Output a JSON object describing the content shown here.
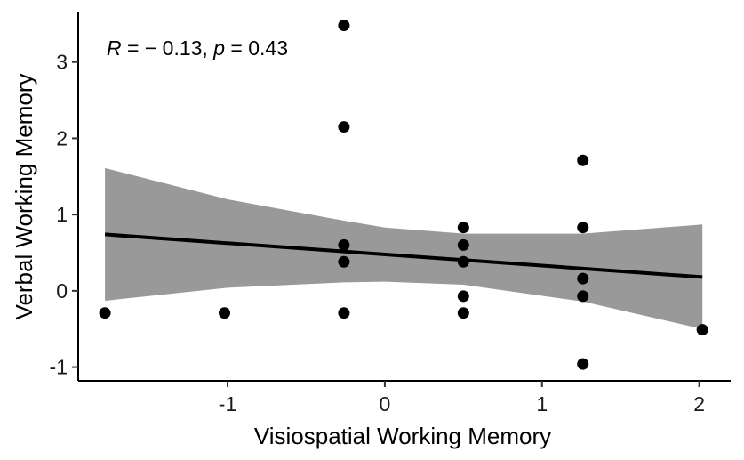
{
  "chart_data": {
    "type": "scatter",
    "xlabel": "Visiospatial Working Memory",
    "ylabel": "Verbal Working Memory",
    "annotation": {
      "r_label": "R",
      "r_text": " = − 0.13, ",
      "p_label": "p",
      "p_text": " = 0.43"
    },
    "xlim": [
      -1.95,
      2.2
    ],
    "ylim": [
      -1.18,
      3.65
    ],
    "x_ticks": [
      -1,
      0,
      1,
      2
    ],
    "y_ticks": [
      -1,
      0,
      1,
      2,
      3
    ],
    "points": [
      {
        "x": -1.78,
        "y": -0.29
      },
      {
        "x": -1.02,
        "y": -0.29
      },
      {
        "x": -0.26,
        "y": 3.48
      },
      {
        "x": -0.26,
        "y": 2.15
      },
      {
        "x": -0.26,
        "y": 0.6
      },
      {
        "x": -0.26,
        "y": 0.38
      },
      {
        "x": -0.26,
        "y": -0.29
      },
      {
        "x": 0.5,
        "y": 0.83
      },
      {
        "x": 0.5,
        "y": 0.6
      },
      {
        "x": 0.5,
        "y": 0.38
      },
      {
        "x": 0.5,
        "y": -0.07
      },
      {
        "x": 0.5,
        "y": -0.29
      },
      {
        "x": 1.26,
        "y": 1.71
      },
      {
        "x": 1.26,
        "y": 0.83
      },
      {
        "x": 1.26,
        "y": 0.16
      },
      {
        "x": 1.26,
        "y": -0.07
      },
      {
        "x": 1.26,
        "y": -0.96
      },
      {
        "x": 2.02,
        "y": -0.51
      }
    ],
    "regression": {
      "x": [
        -1.78,
        2.02
      ],
      "y": [
        0.74,
        0.18
      ]
    },
    "confidence_band": {
      "x": [
        -1.78,
        -1.0,
        -0.26,
        0.0,
        0.5,
        1.26,
        2.02
      ],
      "lower": [
        -0.13,
        0.04,
        0.11,
        0.12,
        0.08,
        -0.14,
        -0.5
      ],
      "upper": [
        1.61,
        1.2,
        0.92,
        0.83,
        0.75,
        0.75,
        0.87
      ]
    },
    "colors": {
      "points": "#000000",
      "line": "#000000",
      "band": "#999999"
    },
    "grid": false,
    "legend": false
  }
}
